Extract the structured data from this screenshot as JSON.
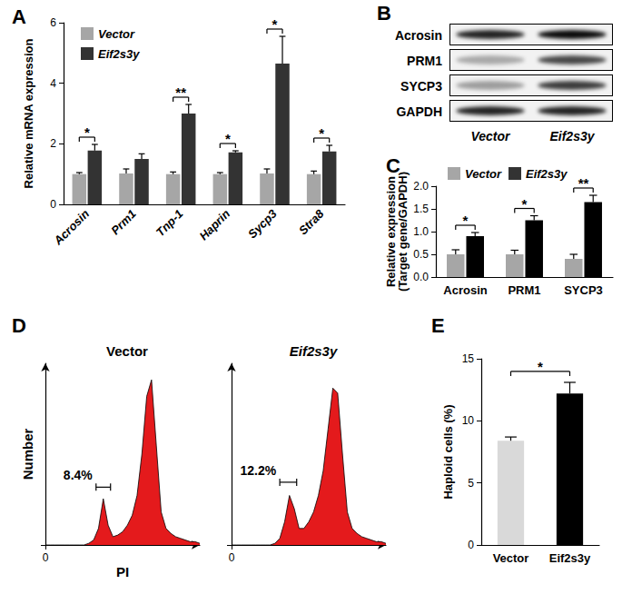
{
  "chart_data": [
    {
      "panel": "A",
      "type": "bar",
      "y_label": "Relative mRNA expression",
      "categories": [
        "Acrosin",
        "Prm1",
        "Tnp-1",
        "Haprin",
        "Sycp3",
        "Stra8"
      ],
      "series": [
        {
          "name": "Vector",
          "color": "#a6a6a6",
          "values": [
            1.0,
            1.02,
            1.0,
            1.0,
            1.02,
            1.0
          ],
          "errors": [
            0.05,
            0.15,
            0.07,
            0.05,
            0.15,
            0.1
          ]
        },
        {
          "name": "Eif2s3y",
          "color": "#333333",
          "values": [
            1.78,
            1.5,
            3.0,
            1.72,
            4.65,
            1.75
          ],
          "errors": [
            0.2,
            0.17,
            0.3,
            0.05,
            0.9,
            0.2
          ]
        }
      ],
      "significance": [
        "*",
        null,
        "**",
        "*",
        "*",
        "*"
      ],
      "ylim": [
        0,
        6
      ],
      "yticks": [
        0,
        2,
        4,
        6
      ],
      "legend": "top-left"
    },
    {
      "panel": "C",
      "type": "bar",
      "y_label": "Relative expression\n(Target gene/GAPDH)",
      "categories": [
        "Acrosin",
        "PRM1",
        "SYCP3"
      ],
      "series": [
        {
          "name": "Vector",
          "color": "#a6a6a6",
          "values": [
            0.5,
            0.5,
            0.4
          ],
          "errors": [
            0.1,
            0.09,
            0.1
          ]
        },
        {
          "name": "Eif2s3y",
          "color": "#000000",
          "values": [
            0.9,
            1.25,
            1.65
          ],
          "errors": [
            0.08,
            0.1,
            0.15
          ]
        }
      ],
      "significance": [
        "*",
        "*",
        "**"
      ],
      "ylim": [
        0,
        2
      ],
      "yticks": [
        {
          "value": 0,
          "label": "0.0"
        },
        0.5,
        {
          "value": 1,
          "label": "1.0"
        },
        1.5,
        {
          "value": 2,
          "label": "2.0"
        }
      ],
      "legend": "top-left"
    },
    {
      "panel": "D",
      "type": "area",
      "title": "Vector",
      "x_label": "PI",
      "y_label": "Number",
      "x": [
        0,
        8,
        16,
        24,
        32,
        40,
        48,
        56,
        64,
        72,
        80,
        88,
        96,
        104,
        112,
        120,
        128,
        136,
        144,
        152,
        160,
        168,
        176,
        184,
        192,
        200,
        208,
        216,
        224,
        232,
        240,
        248,
        256
      ],
      "series": [
        {
          "color": "#e41a1c",
          "values": [
            0,
            0,
            0,
            0,
            0,
            0,
            0,
            0,
            0,
            1,
            3,
            10,
            28,
            12,
            5,
            6,
            8,
            12,
            18,
            30,
            55,
            90,
            100,
            60,
            20,
            10,
            7,
            5,
            4,
            3,
            2,
            2,
            1
          ]
        }
      ],
      "gate": {
        "x": [
          84,
          108
        ],
        "y": 35,
        "label": "8.4%"
      },
      "xlim": [
        0,
        256
      ],
      "xticks": [
        0
      ],
      "ylim": [
        0,
        110
      ],
      "yticks": [
        0
      ],
      "tick_labels": "x"
    },
    {
      "type": "area",
      "title": "Eif2s3y",
      "x": [
        0,
        8,
        16,
        24,
        32,
        40,
        48,
        56,
        64,
        72,
        80,
        88,
        96,
        104,
        112,
        120,
        128,
        136,
        144,
        152,
        160,
        168,
        176,
        184,
        192,
        200,
        208,
        216,
        224,
        232,
        240,
        248,
        256
      ],
      "series": [
        {
          "color": "#e41a1c",
          "values": [
            0,
            0,
            0,
            0,
            0,
            0,
            0,
            0,
            0,
            1,
            4,
            14,
            30,
            22,
            10,
            10,
            14,
            20,
            30,
            45,
            70,
            95,
            92,
            55,
            20,
            10,
            7,
            5,
            4,
            3,
            2,
            2,
            1
          ]
        }
      ],
      "gate": {
        "x": [
          80,
          108
        ],
        "y": 38,
        "label": "12.2%"
      },
      "xlim": [
        0,
        256
      ],
      "xticks": [
        0
      ],
      "ylim": [
        0,
        110
      ],
      "yticks": [
        0
      ],
      "tick_labels": "x"
    },
    {
      "panel": "E",
      "type": "bar",
      "y_label": "Haploid cells (%)",
      "categories": [
        "Vector",
        "Eif2s3y"
      ],
      "values": [
        8.4,
        12.2
      ],
      "errors": [
        0.3,
        0.9
      ],
      "colors": [
        "#d9d9d9",
        "#000000"
      ],
      "significance": "*",
      "ylim": [
        0,
        15
      ],
      "yticks": [
        0,
        5,
        10,
        15
      ]
    }
  ],
  "blot": {
    "panel": "B",
    "rows": [
      {
        "label": "Acrosin",
        "intensity": [
          0.85,
          0.95
        ]
      },
      {
        "label": "PRM1",
        "intensity": [
          0.3,
          0.7
        ]
      },
      {
        "label": "SYCP3",
        "intensity": [
          0.35,
          0.75
        ]
      },
      {
        "label": "GAPDH",
        "intensity": [
          0.85,
          0.85
        ]
      }
    ],
    "lanes": [
      "Vector",
      "Eif2s3y"
    ]
  }
}
